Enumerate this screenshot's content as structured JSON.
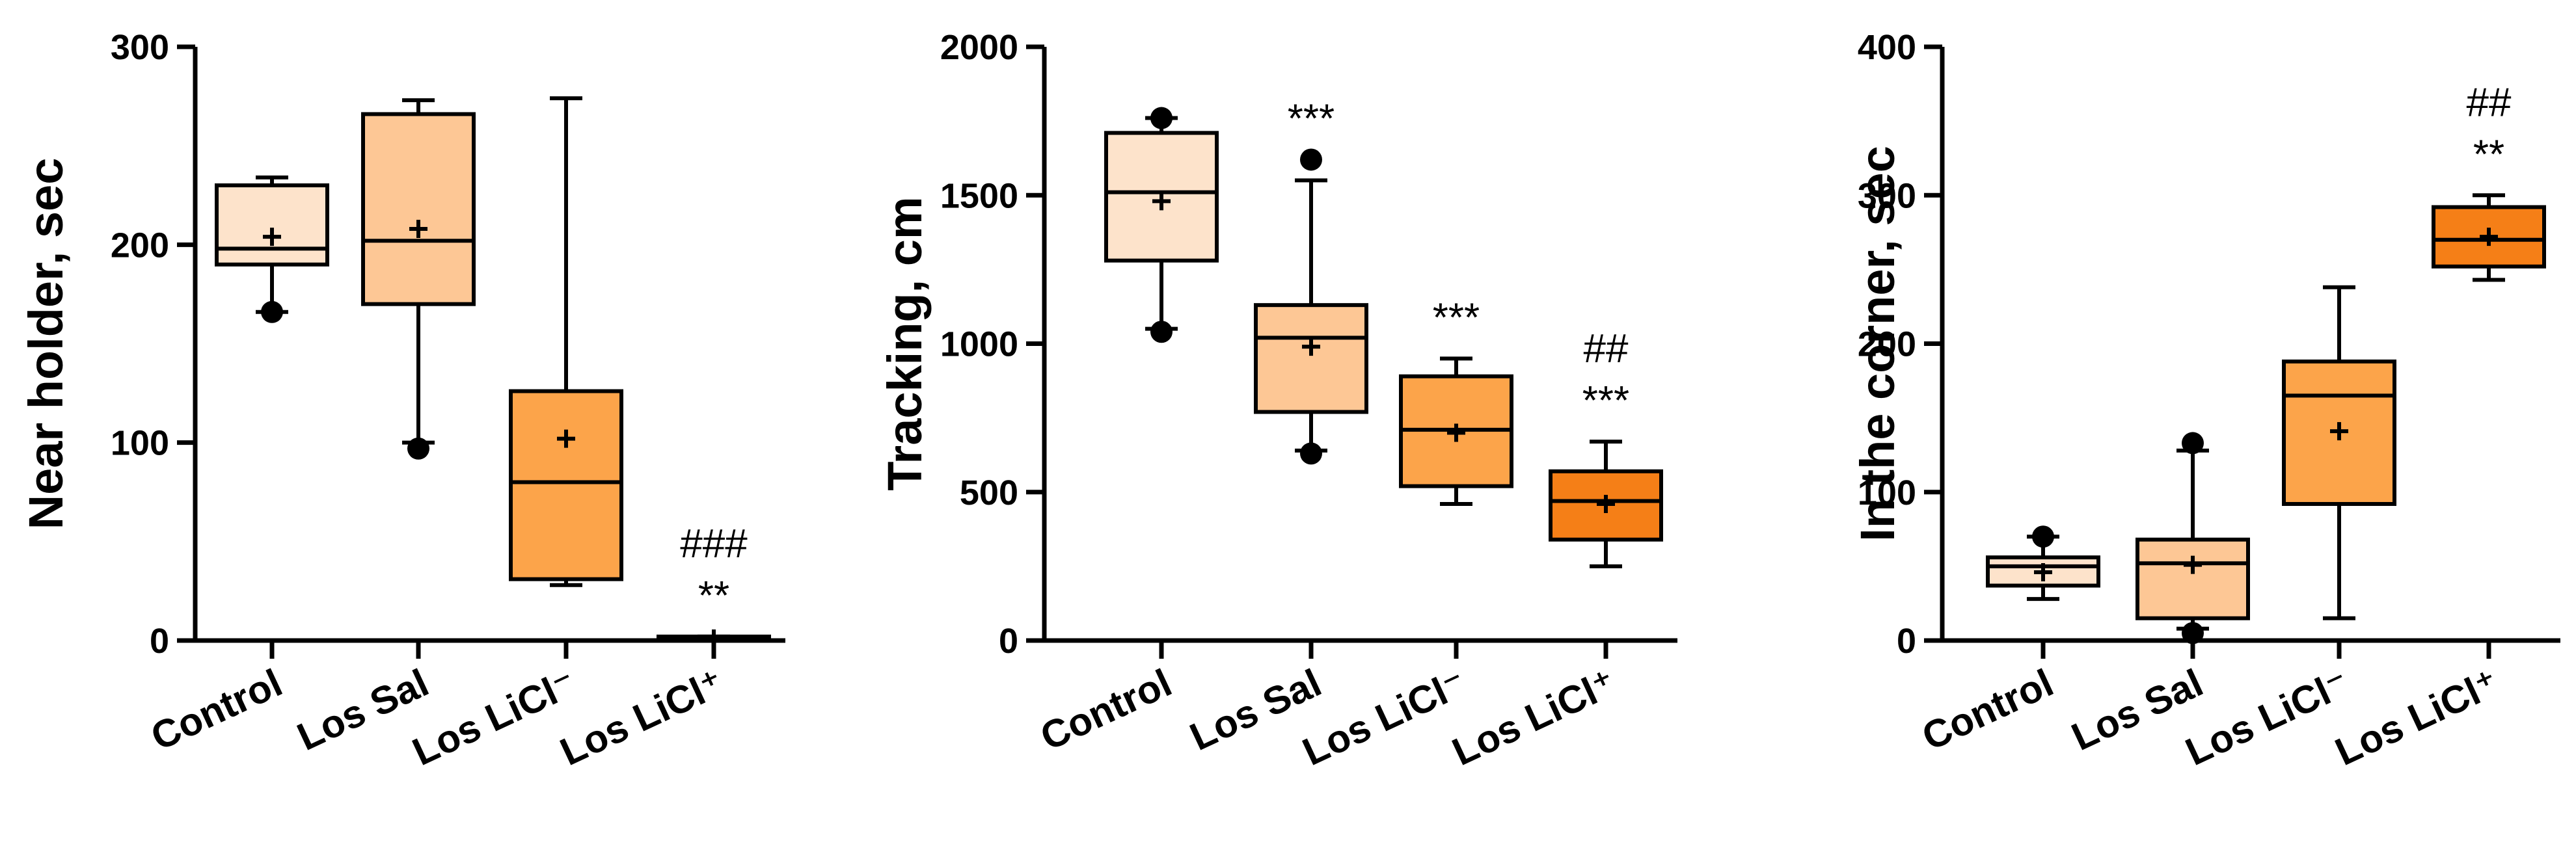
{
  "chart_data": [
    {
      "type": "boxplot",
      "ylabel": "Near holder, sec",
      "ylim": [
        0,
        300
      ],
      "yticks": [
        0,
        100,
        200,
        300
      ],
      "categories": [
        "Control",
        "Los Sal",
        "Los LiCl⁻",
        "Los LiCl⁺"
      ],
      "colors": [
        "#fde3cb",
        "#fdc795",
        "#fca44a",
        "#f57f17"
      ],
      "boxes": [
        {
          "category": "Control",
          "whisker_low": 166,
          "q1": 190,
          "median": 198,
          "q3": 230,
          "whisker_high": 234,
          "mean": 204,
          "outliers": [
            166
          ]
        },
        {
          "category": "Los Sal",
          "whisker_low": 100,
          "q1": 170,
          "median": 202,
          "q3": 266,
          "whisker_high": 273,
          "mean": 208,
          "outliers": [
            97
          ]
        },
        {
          "category": "Los LiCl⁻",
          "whisker_low": 28,
          "q1": 31,
          "median": 80,
          "q3": 126,
          "whisker_high": 274,
          "mean": 102,
          "outliers": []
        },
        {
          "category": "Los LiCl⁺",
          "whisker_low": 0,
          "q1": 0,
          "median": 1,
          "q3": 2,
          "whisker_high": 2,
          "mean": 1,
          "outliers": []
        }
      ],
      "annotations": [
        {
          "category": "Los LiCl⁺",
          "lines": [
            "###",
            "**"
          ]
        }
      ]
    },
    {
      "type": "boxplot",
      "ylabel": "Tracking, cm",
      "ylim": [
        0,
        2000
      ],
      "yticks": [
        0,
        500,
        1000,
        1500,
        2000
      ],
      "categories": [
        "Control",
        "Los Sal",
        "Los LiCl⁻",
        "Los LiCl⁺"
      ],
      "colors": [
        "#fde3cb",
        "#fdc795",
        "#fca44a",
        "#f57f17"
      ],
      "boxes": [
        {
          "category": "Control",
          "whisker_low": 1050,
          "q1": 1280,
          "median": 1510,
          "q3": 1710,
          "whisker_high": 1760,
          "mean": 1480,
          "outliers": [
            1040,
            1760
          ]
        },
        {
          "category": "Los Sal",
          "whisker_low": 640,
          "q1": 770,
          "median": 1020,
          "q3": 1130,
          "whisker_high": 1550,
          "mean": 990,
          "outliers": [
            630,
            1620
          ]
        },
        {
          "category": "Los LiCl⁻",
          "whisker_low": 460,
          "q1": 520,
          "median": 710,
          "q3": 890,
          "whisker_high": 950,
          "mean": 700,
          "outliers": []
        },
        {
          "category": "Los LiCl⁺",
          "whisker_low": 250,
          "q1": 340,
          "median": 470,
          "q3": 570,
          "whisker_high": 670,
          "mean": 460,
          "outliers": []
        }
      ],
      "annotations": [
        {
          "category": "Los Sal",
          "lines": [
            "***"
          ]
        },
        {
          "category": "Los LiCl⁻",
          "lines": [
            "***"
          ]
        },
        {
          "category": "Los LiCl⁺",
          "lines": [
            "##",
            "***"
          ]
        }
      ]
    },
    {
      "type": "boxplot",
      "ylabel": "In the corner, sec",
      "ylim": [
        0,
        400
      ],
      "yticks": [
        0,
        100,
        200,
        300,
        400
      ],
      "categories": [
        "Control",
        "Los Sal",
        "Los LiCl⁻",
        "Los LiCl⁺"
      ],
      "colors": [
        "#fde3cb",
        "#fdc795",
        "#fca44a",
        "#f57f17"
      ],
      "boxes": [
        {
          "category": "Control",
          "whisker_low": 28,
          "q1": 37,
          "median": 50,
          "q3": 56,
          "whisker_high": 70,
          "mean": 46,
          "outliers": [
            70
          ]
        },
        {
          "category": "Los Sal",
          "whisker_low": 8,
          "q1": 15,
          "median": 52,
          "q3": 68,
          "whisker_high": 128,
          "mean": 51,
          "outliers": [
            5,
            133
          ]
        },
        {
          "category": "Los LiCl⁻",
          "whisker_low": 15,
          "q1": 92,
          "median": 165,
          "q3": 188,
          "whisker_high": 238,
          "mean": 141,
          "outliers": []
        },
        {
          "category": "Los LiCl⁺",
          "whisker_low": 243,
          "q1": 252,
          "median": 270,
          "q3": 292,
          "whisker_high": 300,
          "mean": 272,
          "outliers": []
        }
      ],
      "annotations": [
        {
          "category": "Los LiCl⁺",
          "lines": [
            "##",
            "**"
          ]
        }
      ]
    }
  ]
}
